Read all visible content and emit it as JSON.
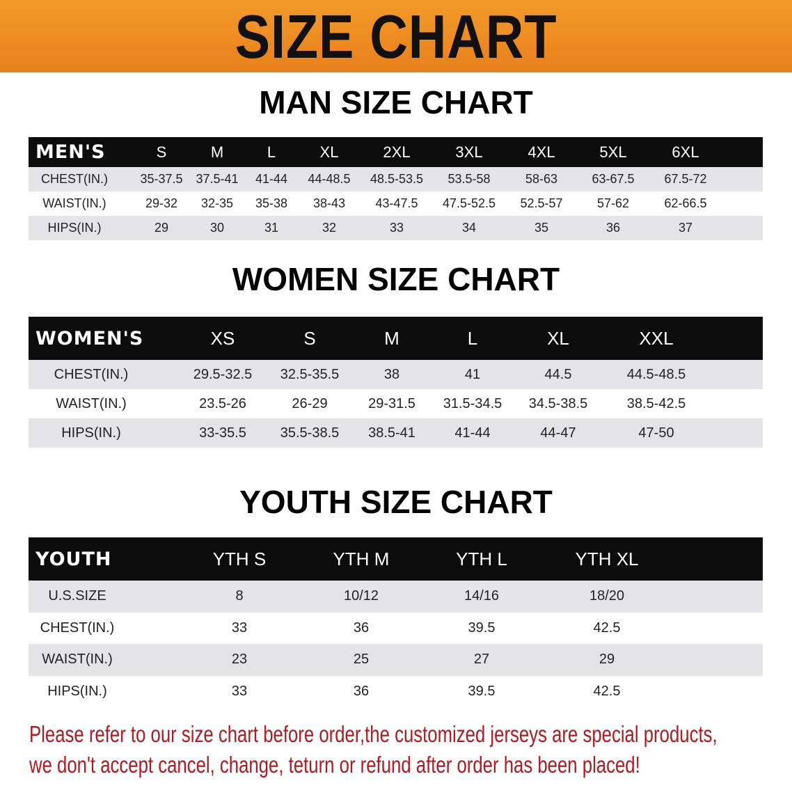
{
  "banner_title": "SIZE CHART",
  "men": {
    "title": "MAN SIZE CHART",
    "header": [
      "MEN'S",
      "S",
      "M",
      "L",
      "XL",
      "2XL",
      "3XL",
      "4XL",
      "5XL",
      "6XL"
    ],
    "rows": [
      [
        "CHEST(IN.)",
        "35-37.5",
        "37.5-41",
        "41-44",
        "44-48.5",
        "48.5-53.5",
        "53.5-58",
        "58-63",
        "63-67.5",
        "67.5-72"
      ],
      [
        "WAIST(IN.)",
        "29-32",
        "32-35",
        "35-38",
        "38-43",
        "43-47.5",
        "47.5-52.5",
        "52.5-57",
        "57-62",
        "62-66.5"
      ],
      [
        "HIPS(IN.)",
        "29",
        "30",
        "31",
        "32",
        "33",
        "34",
        "35",
        "36",
        "37"
      ]
    ]
  },
  "women": {
    "title": "WOMEN SIZE CHART",
    "header": [
      "WOMEN'S",
      "XS",
      "S",
      "M",
      "L",
      "XL",
      "XXL"
    ],
    "rows": [
      [
        "CHEST(IN.)",
        "29.5-32.5",
        "32.5-35.5",
        "38",
        "41",
        "44.5",
        "44.5-48.5"
      ],
      [
        "WAIST(IN.)",
        "23.5-26",
        "26-29",
        "29-31.5",
        "31.5-34.5",
        "34.5-38.5",
        "38.5-42.5"
      ],
      [
        "HIPS(IN.)",
        "33-35.5",
        "35.5-38.5",
        "38.5-41",
        "41-44",
        "44-47",
        "47-50"
      ]
    ]
  },
  "youth": {
    "title": "YOUTH SIZE CHART",
    "header": [
      "YOUTH",
      "YTH S",
      "YTH M",
      "YTH L",
      "YTH XL"
    ],
    "rows": [
      [
        "U.S.SIZE",
        "8",
        "10/12",
        "14/16",
        "18/20"
      ],
      [
        "CHEST(IN.)",
        "33",
        "36",
        "39.5",
        "42.5"
      ],
      [
        "WAIST(IN.)",
        "23",
        "25",
        "27",
        "29"
      ],
      [
        "HIPS(IN.)",
        "33",
        "36",
        "39.5",
        "42.5"
      ]
    ]
  },
  "note": {
    "line1": "Please refer to our size chart before order,the customized jerseys are special products,",
    "line2": "we don't accept cancel, change, teturn or refund after order has been placed!",
    "color": "#b3191f"
  },
  "colors": {
    "banner": "#ee8a20",
    "header_row": "#0c0c0c",
    "stripe": "#e4e4e6"
  }
}
